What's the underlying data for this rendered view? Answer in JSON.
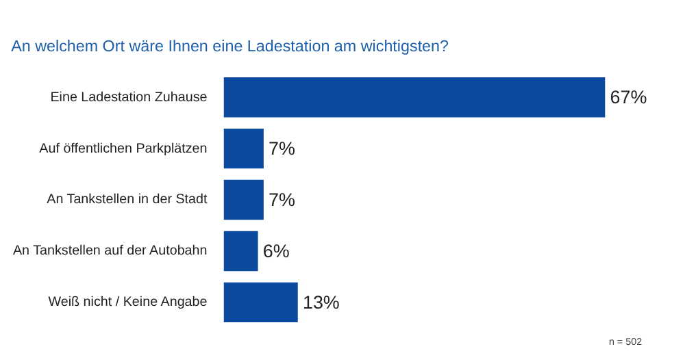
{
  "chart_data": {
    "type": "bar",
    "orientation": "horizontal",
    "title": "An welchem Ort wäre Ihnen eine Ladestation am wichtigsten?",
    "categories": [
      "Eine Ladestation Zuhause",
      "Auf öffentlichen Parkplätzen",
      "An Tankstellen in der Stadt",
      "An Tankstellen auf der Autobahn",
      "Weiß nicht / Keine Angabe"
    ],
    "values": [
      67,
      7,
      7,
      6,
      13
    ],
    "value_labels": [
      "67%",
      "7%",
      "7%",
      "6%",
      "13%"
    ],
    "color": "#0b4a9e",
    "annotations": [
      "n = 502"
    ],
    "grid": false
  }
}
